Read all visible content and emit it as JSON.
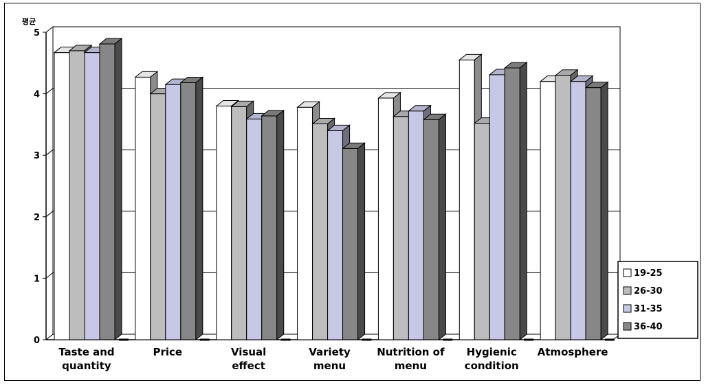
{
  "chart_data": {
    "type": "bar",
    "ylabel": "평균",
    "ylim": [
      0,
      5
    ],
    "yticks": [
      "0",
      "1",
      "2",
      "3",
      "4",
      "5"
    ],
    "grid": true,
    "legend_position": "right",
    "categories": [
      [
        "Taste and",
        "quantity"
      ],
      [
        "Price"
      ],
      [
        "Visual",
        "effect"
      ],
      [
        "Variety",
        "menu"
      ],
      [
        "Nutrition of",
        "menu"
      ],
      [
        "Hygienic",
        "condition"
      ],
      [
        "Atmosphere"
      ]
    ],
    "series": [
      {
        "name": "19-25",
        "color": "#ffffff",
        "values": [
          4.67,
          4.27,
          3.8,
          3.78,
          3.93,
          4.55,
          4.2
        ]
      },
      {
        "name": "26-30",
        "color": "#bdbdbd",
        "values": [
          4.7,
          4.0,
          3.79,
          3.51,
          3.63,
          3.52,
          4.3
        ]
      },
      {
        "name": "31-35",
        "color": "#c8c8e6",
        "values": [
          4.67,
          4.15,
          3.59,
          3.4,
          3.72,
          4.31,
          4.2
        ]
      },
      {
        "name": "36-40",
        "color": "#878787",
        "values": [
          4.81,
          4.18,
          3.64,
          3.11,
          3.58,
          4.42,
          4.1
        ]
      }
    ]
  }
}
